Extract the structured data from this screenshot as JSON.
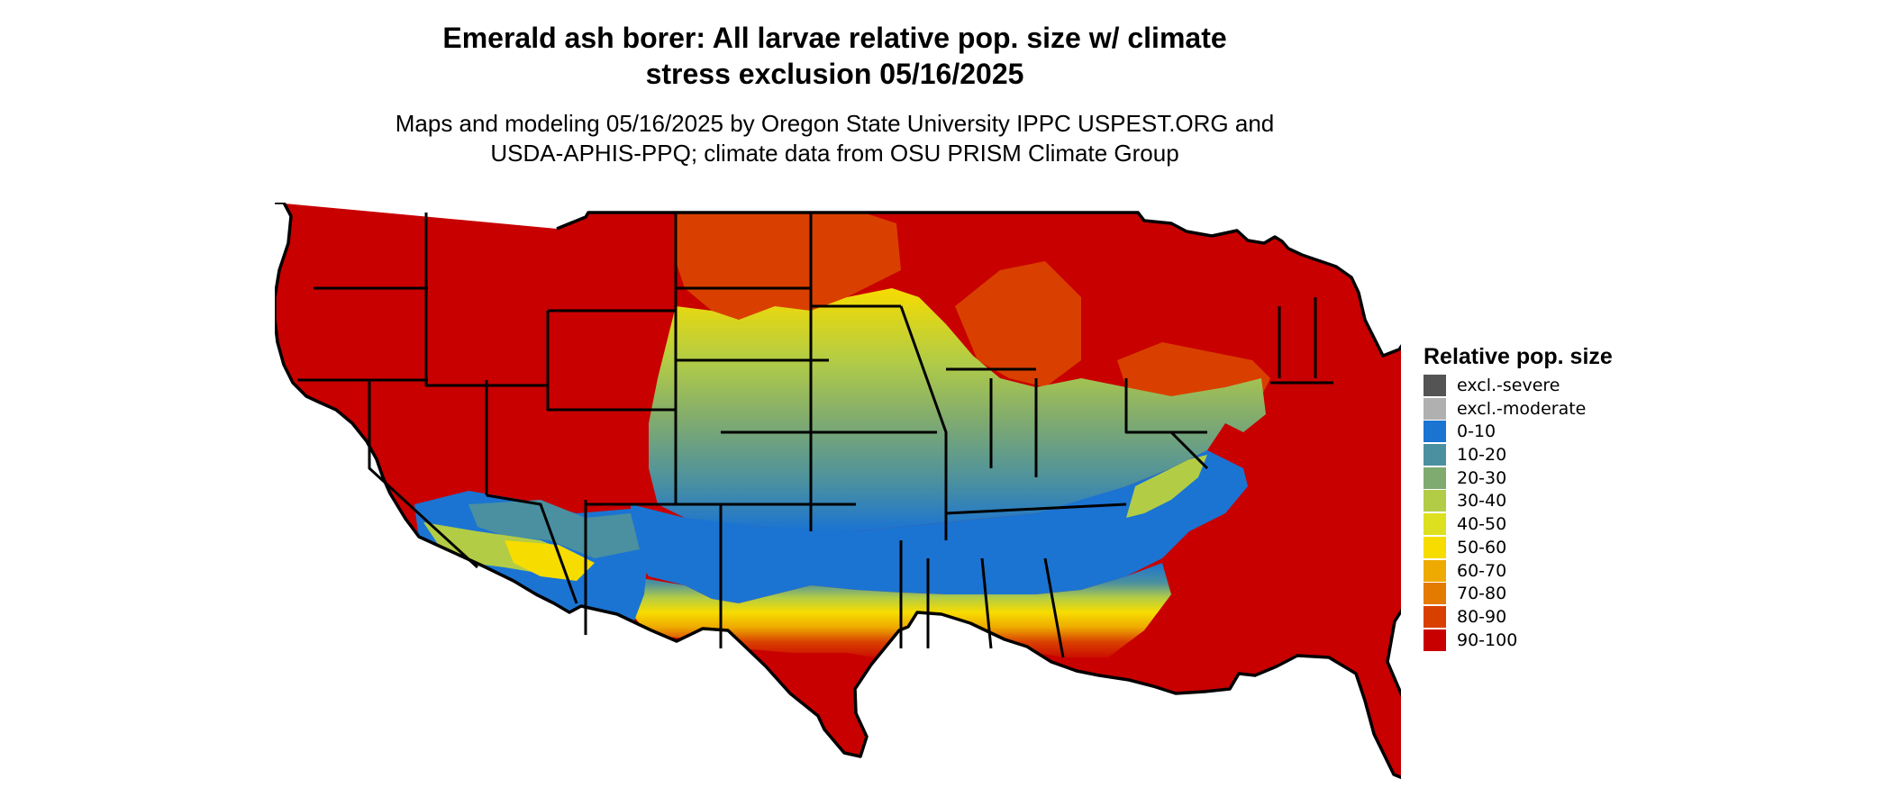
{
  "header": {
    "title": "Emerald ash borer: All larvae relative pop. size w/ climate\nstress exclusion 05/16/2025",
    "subtitle": "Maps and modeling 05/16/2025 by Oregon State University IPPC USPEST.ORG and\nUSDA-APHIS-PPQ; climate data from OSU PRISM Climate Group"
  },
  "legend": {
    "title": "Relative pop. size",
    "items": [
      {
        "label": "excl.-severe",
        "color": "#545454"
      },
      {
        "label": "excl.-moderate",
        "color": "#b0b0b0"
      },
      {
        "label": "0-10",
        "color": "#1b74d2"
      },
      {
        "label": "10-20",
        "color": "#4a90a0"
      },
      {
        "label": "20-30",
        "color": "#7faa70"
      },
      {
        "label": "30-40",
        "color": "#b2cc46"
      },
      {
        "label": "40-50",
        "color": "#dde01e"
      },
      {
        "label": "50-60",
        "color": "#f7dc00"
      },
      {
        "label": "60-70",
        "color": "#eeaa00"
      },
      {
        "label": "70-80",
        "color": "#e57a00"
      },
      {
        "label": "80-90",
        "color": "#d94000"
      },
      {
        "label": "90-100",
        "color": "#c80000"
      }
    ]
  }
}
